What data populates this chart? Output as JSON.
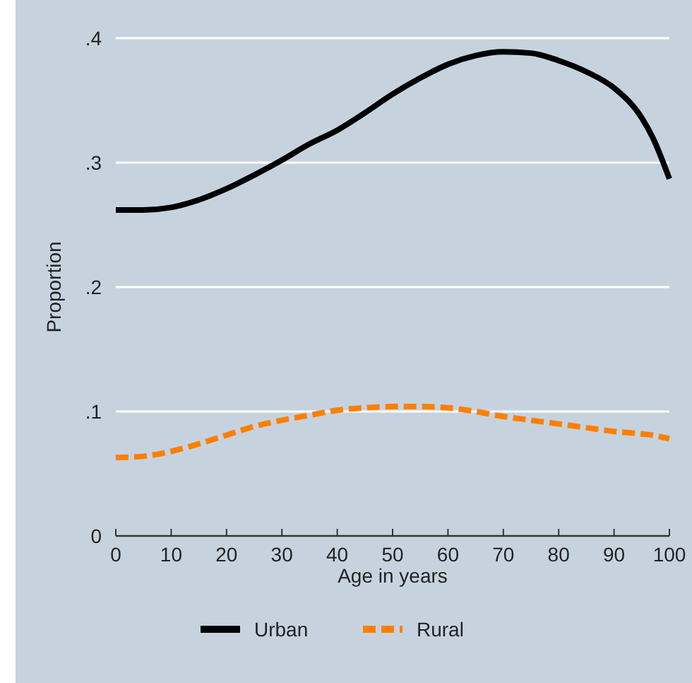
{
  "chart_data": {
    "type": "line",
    "xlabel": "Age in years",
    "ylabel": "Proportion",
    "x": [
      0,
      5,
      10,
      15,
      20,
      25,
      30,
      35,
      40,
      45,
      50,
      55,
      60,
      65,
      70,
      75,
      80,
      85,
      90,
      95,
      97,
      100
    ],
    "series": [
      {
        "name": "Urban",
        "color": "#000000",
        "line_style": "solid",
        "values": [
          0.262,
          0.262,
          0.264,
          0.27,
          0.279,
          0.29,
          0.302,
          0.315,
          0.326,
          0.34,
          0.355,
          0.368,
          0.379,
          0.386,
          0.389,
          0.388,
          0.382,
          0.373,
          0.36,
          0.336,
          0.32,
          0.287
        ]
      },
      {
        "name": "Rural",
        "color": "#ff7f00",
        "line_style": "dashed",
        "values": [
          0.063,
          0.064,
          0.068,
          0.074,
          0.081,
          0.088,
          0.093,
          0.097,
          0.101,
          0.103,
          0.104,
          0.104,
          0.103,
          0.1,
          0.096,
          0.093,
          0.09,
          0.087,
          0.084,
          0.082,
          0.081,
          0.078
        ]
      }
    ],
    "xlim": [
      0,
      100
    ],
    "xticks": [
      0,
      10,
      20,
      30,
      40,
      50,
      60,
      70,
      80,
      90,
      100
    ],
    "ylim": [
      0,
      0.4
    ],
    "yticks": [
      {
        "value": 0,
        "label": "0"
      },
      {
        "value": 0.1,
        "label": ".1"
      },
      {
        "value": 0.2,
        "label": ".2"
      },
      {
        "value": 0.3,
        "label": ".3"
      },
      {
        "value": 0.4,
        "label": ".4"
      }
    ],
    "grid": "y",
    "legend": "bottom"
  }
}
